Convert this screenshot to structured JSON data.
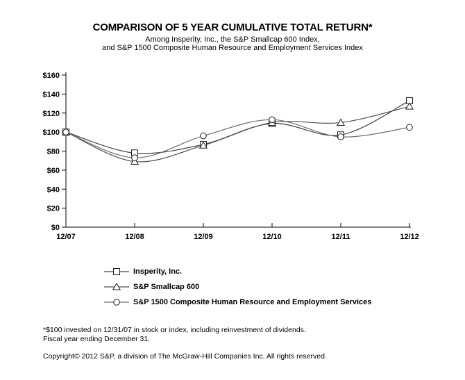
{
  "header": {
    "title": "COMPARISON OF 5 YEAR CUMULATIVE TOTAL RETURN*",
    "subtitle_line1": "Among Insperity, Inc., the S&P Smallcap 600 Index,",
    "subtitle_line2": "and S&P 1500 Composite Human Resource and Employment Services Index"
  },
  "chart_data": {
    "type": "line",
    "x": [
      "12/07",
      "12/08",
      "12/09",
      "12/10",
      "12/11",
      "12/12"
    ],
    "series": [
      {
        "name": "Insperity, Inc.",
        "marker": "square",
        "color": "#404040",
        "values": [
          100,
          78,
          87,
          109,
          97,
          133
        ]
      },
      {
        "name": "S&P Smallcap 600",
        "marker": "triangle",
        "color": "#4d4d4d",
        "values": [
          100,
          69,
          86,
          110,
          110,
          127
        ]
      },
      {
        "name": "S&P 1500 Composite Human Resource and Employment Services",
        "marker": "circle",
        "color": "#6e6e6e",
        "values": [
          100,
          73,
          96,
          113,
          95,
          105
        ]
      }
    ],
    "ylim": [
      0,
      160
    ],
    "ytick_step": 20,
    "ytick_labels": [
      "$0",
      "$20",
      "$40",
      "$60",
      "$80",
      "$100",
      "$120",
      "$140",
      "$160"
    ],
    "grid": false,
    "legend_position": "below-left",
    "axis_color": "#000000",
    "marker_fill": "#ffffff",
    "marker_stroke": "#1f1f1f"
  },
  "footnotes": {
    "line1": "*$100 invested on 12/31/07 in stock or index, including reinvestment of dividends.",
    "line2": "Fiscal year ending December 31.",
    "copyright": "Copyright© 2012 S&P, a division of The McGraw-Hill Companies Inc. All rights reserved."
  }
}
